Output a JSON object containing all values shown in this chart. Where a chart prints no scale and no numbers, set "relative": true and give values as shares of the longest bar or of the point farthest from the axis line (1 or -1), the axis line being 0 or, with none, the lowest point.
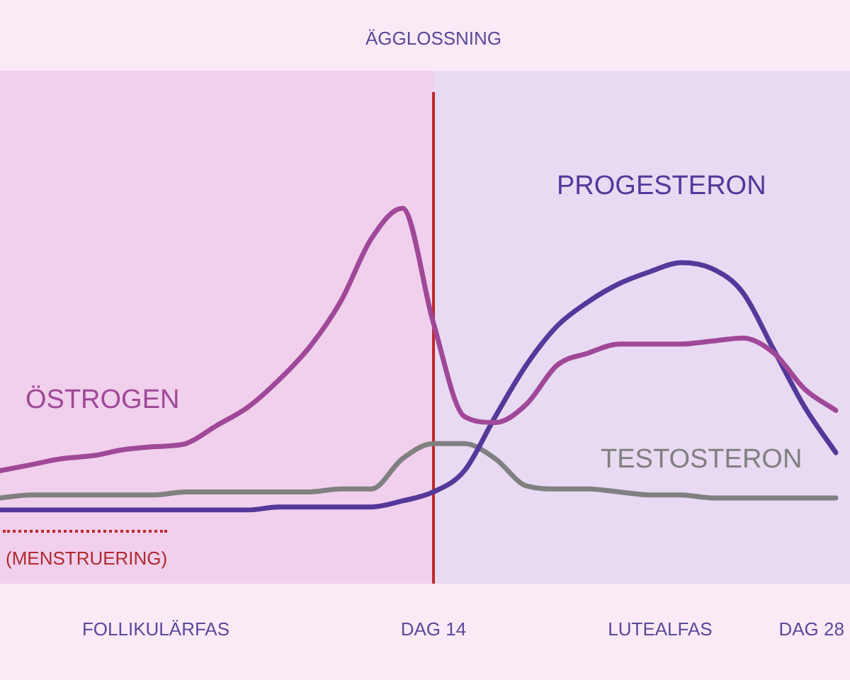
{
  "chart_data": {
    "type": "line",
    "relative": true,
    "legend": false,
    "categories": [
      null,
      null,
      null,
      null,
      null,
      null,
      null,
      null,
      null,
      null,
      null,
      null,
      null,
      null,
      null,
      null,
      null,
      null,
      null,
      null,
      null,
      null,
      null,
      null,
      null,
      null,
      null,
      null
    ],
    "series": [
      {
        "name": "ÖSTROGEN",
        "color": "#a04898",
        "values": [
          0.13,
          0.15,
          0.17,
          0.18,
          0.2,
          0.21,
          0.22,
          0.28,
          0.34,
          0.43,
          0.54,
          0.69,
          0.9,
          1,
          0.62,
          0.31,
          0.29,
          0.35,
          0.48,
          0.52,
          0.55,
          0.55,
          0.55,
          0.56,
          0.57,
          0.52,
          0.4,
          0.33
        ]
      },
      {
        "name": "PROGESTERON",
        "color": "#54389a",
        "values": [
          0,
          0,
          0,
          0,
          0,
          0,
          0,
          0,
          0,
          0.01,
          0.01,
          0.01,
          0.01,
          0.03,
          0.06,
          0.13,
          0.31,
          0.48,
          0.61,
          0.69,
          0.75,
          0.79,
          0.82,
          0.8,
          0.72,
          0.53,
          0.34,
          0.19
        ]
      },
      {
        "name": "TESTOSTERON",
        "color": "#808080",
        "values": [
          0.04,
          0.05,
          0.05,
          0.05,
          0.05,
          0.05,
          0.06,
          0.06,
          0.06,
          0.06,
          0.06,
          0.07,
          0.07,
          0.17,
          0.22,
          0.22,
          0.17,
          0.08,
          0.07,
          0.07,
          0.06,
          0.05,
          0.05,
          0.04,
          0.04,
          0.04,
          0.04,
          0.04
        ]
      }
    ],
    "annotations": [
      "ÄGGLOSSNING",
      "(MENSTRUERING)",
      "FOLLIKULÄRFAS",
      "DAG 14",
      "LUTEALFAS",
      "DAG 28"
    ]
  }
}
